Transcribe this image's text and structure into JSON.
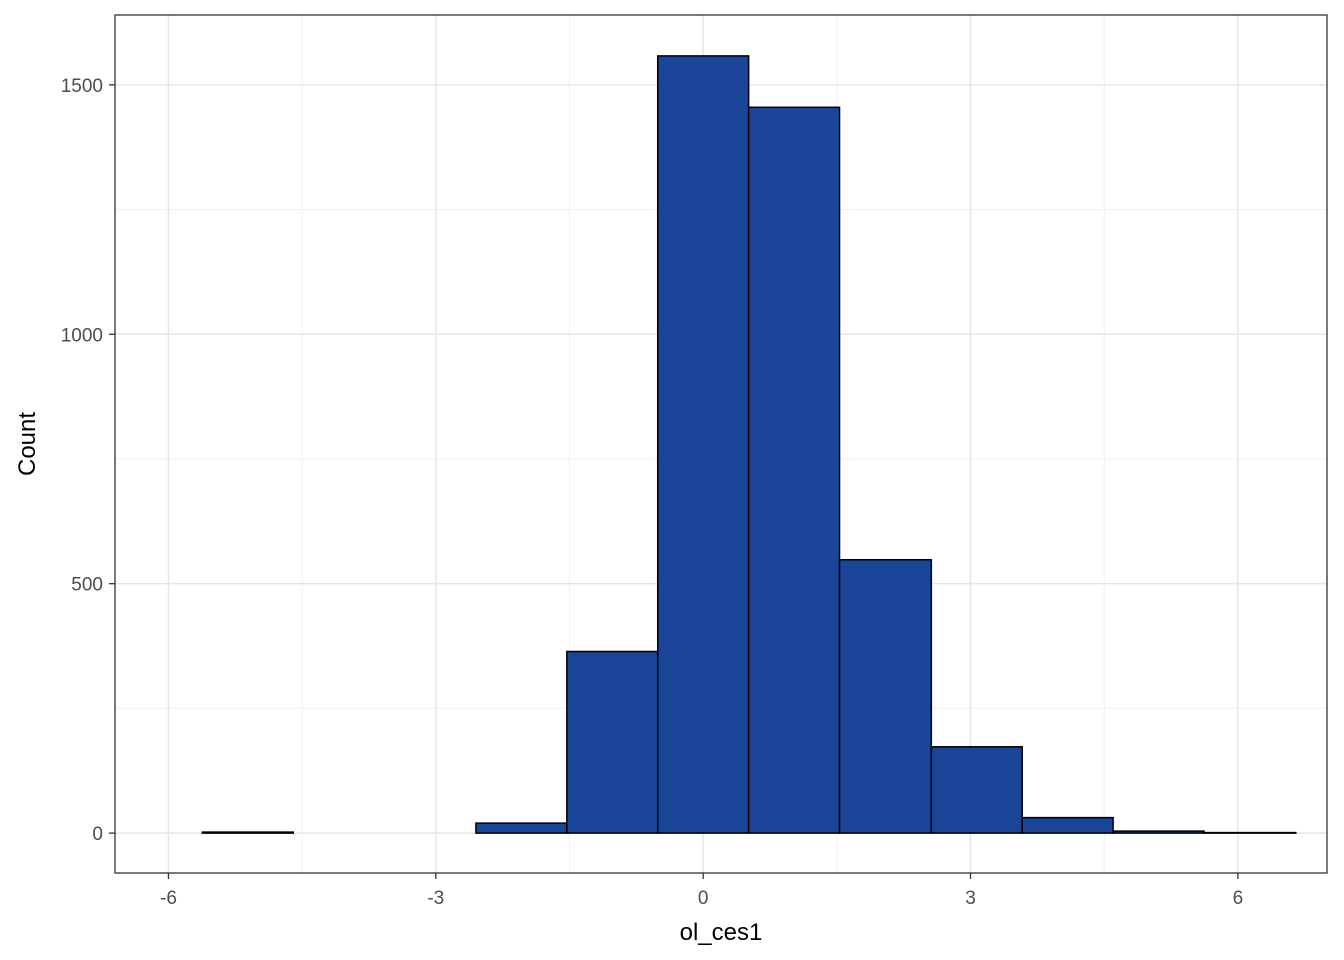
{
  "chart_data": {
    "type": "bar",
    "subtype": "histogram",
    "xlabel": "ol_ces1",
    "ylabel": "Count",
    "xlim": [
      -6.6,
      7.0
    ],
    "ylim": [
      -80,
      1640
    ],
    "x_ticks": [
      -6,
      -3,
      0,
      3,
      6
    ],
    "x_tick_labels": [
      "-6",
      "-3",
      "0",
      "3",
      "6"
    ],
    "y_ticks": [
      0,
      500,
      1000,
      1500
    ],
    "y_tick_labels": [
      "0",
      "500",
      "1000",
      "1500"
    ],
    "y_minor_gridlines": [
      250,
      750,
      1250
    ],
    "grid": true,
    "bin_width": 1.0225,
    "bins": [
      {
        "x0": -5.62,
        "x1": -4.6,
        "count": 2
      },
      {
        "x0": -4.6,
        "x1": -3.58,
        "count": 0
      },
      {
        "x0": -3.58,
        "x1": -2.55,
        "count": 0
      },
      {
        "x0": -2.55,
        "x1": -1.53,
        "count": 20
      },
      {
        "x0": -1.53,
        "x1": -0.51,
        "count": 364
      },
      {
        "x0": -0.51,
        "x1": 0.51,
        "count": 1558
      },
      {
        "x0": 0.51,
        "x1": 1.53,
        "count": 1455
      },
      {
        "x0": 1.53,
        "x1": 2.56,
        "count": 548
      },
      {
        "x0": 2.56,
        "x1": 3.58,
        "count": 173
      },
      {
        "x0": 3.58,
        "x1": 4.6,
        "count": 31
      },
      {
        "x0": 4.6,
        "x1": 5.62,
        "count": 4
      },
      {
        "x0": 5.62,
        "x1": 6.65,
        "count": 1
      }
    ],
    "fill_color": "#1a4599",
    "outline_color": "#000000"
  }
}
